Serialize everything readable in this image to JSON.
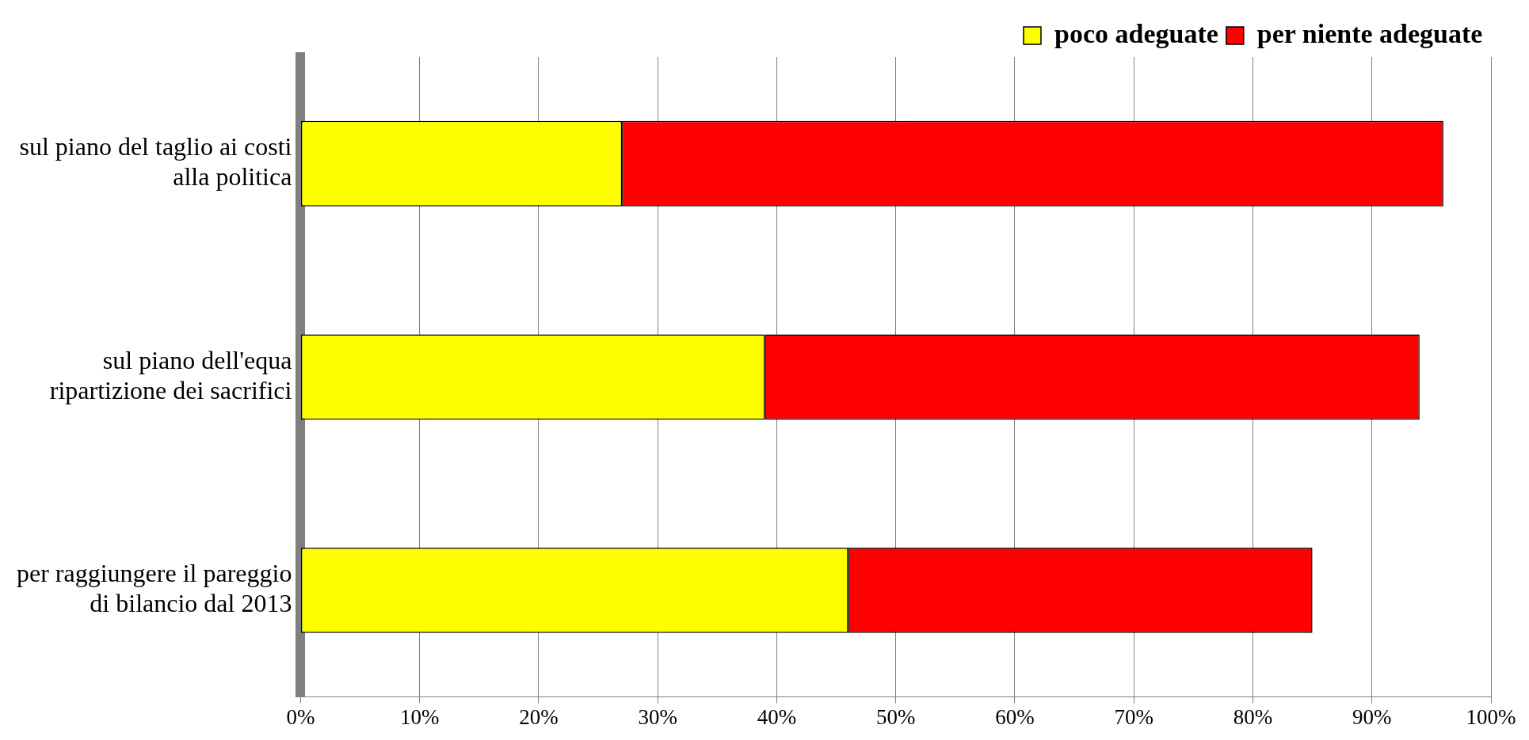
{
  "chart_data": {
    "type": "bar",
    "orientation": "horizontal",
    "stacked": true,
    "categories": [
      "sul piano del taglio ai costi alla politica",
      "sul piano dell'equa ripartizione dei sacrifici",
      "per raggiungere il pareggio di bilancio dal 2013"
    ],
    "series": [
      {
        "name": "poco adeguate",
        "color": "#ffff00",
        "values": [
          27,
          39,
          46
        ]
      },
      {
        "name": "per niente adeguate",
        "color": "#ff0000",
        "values": [
          69,
          55,
          39
        ]
      }
    ],
    "xlim": [
      0,
      100
    ],
    "xticks": [
      {
        "value": 0,
        "label": "0%"
      },
      {
        "value": 10,
        "label": "10%"
      },
      {
        "value": 20,
        "label": "20%"
      },
      {
        "value": 30,
        "label": "30%"
      },
      {
        "value": 40,
        "label": "40%"
      },
      {
        "value": 50,
        "label": "50%"
      },
      {
        "value": 60,
        "label": "60%"
      },
      {
        "value": 70,
        "label": "70%"
      },
      {
        "value": 80,
        "label": "80%"
      },
      {
        "value": 90,
        "label": "90%"
      },
      {
        "value": 100,
        "label": "100%"
      }
    ],
    "grid": "x",
    "legend": "top right"
  }
}
